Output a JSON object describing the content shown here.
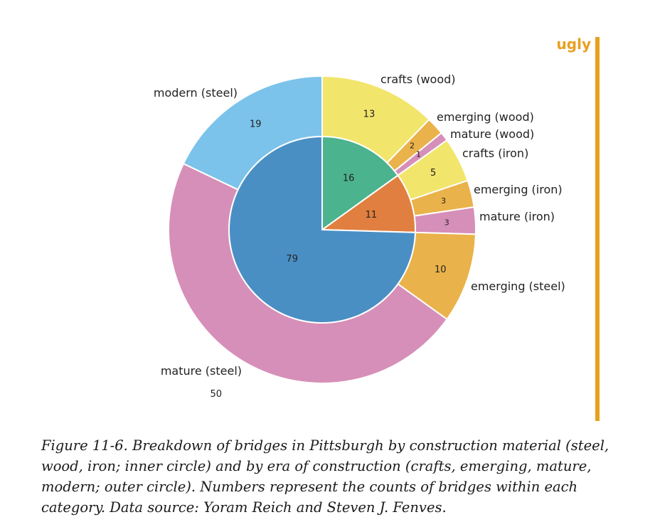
{
  "tag": {
    "label": "ugly",
    "color": "#e8a020"
  },
  "caption": "Figure 11-6. Breakdown of bridges in Pittsburgh by construction material (steel, wood, iron; inner circle) and by era of construction (crafts, emerging, mature, modern; outer circle). Numbers represent the counts of bridges within each category. Data source: Yoram Reich and Steven J. Fenves.",
  "chart_data": {
    "type": "pie",
    "title": "",
    "inner": {
      "description": "construction material",
      "slices": [
        {
          "value": 16,
          "color": "#4bb38e"
        },
        {
          "value": 11,
          "color": "#e07f3f"
        },
        {
          "value": 79,
          "color": "#4a8fc4"
        }
      ]
    },
    "outer": {
      "description": "era of construction",
      "slices": [
        {
          "label": "crafts (wood)",
          "value": 13,
          "color": "#f2e56b"
        },
        {
          "label": "emerging (wood)",
          "value": 2,
          "color": "#eab24a"
        },
        {
          "label": "mature (wood)",
          "value": 1,
          "color": "#d68fb8"
        },
        {
          "label": "crafts (iron)",
          "value": 5,
          "color": "#f2e56b"
        },
        {
          "label": "emerging (iron)",
          "value": 3,
          "color": "#eab24a"
        },
        {
          "label": "mature (iron)",
          "value": 3,
          "color": "#d68fb8"
        },
        {
          "label": "emerging (steel)",
          "value": 10,
          "color": "#eab24a"
        },
        {
          "label": "mature (steel)",
          "value": 50,
          "color": "#d68fb8"
        },
        {
          "label": "modern (steel)",
          "value": 19,
          "color": "#7bc3ea"
        }
      ]
    }
  }
}
